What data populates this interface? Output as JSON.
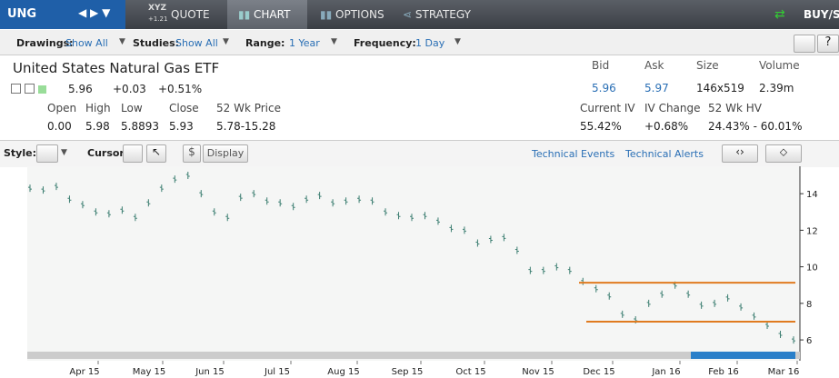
{
  "nav": {
    "symbol": "UNG",
    "quote_icon": "XYZ",
    "quote_icon_sub": "+1.21",
    "tabs": [
      "QUOTE",
      "CHART",
      "OPTIONS",
      "STRATEGY"
    ],
    "trade": "BUY/SE"
  },
  "toolbar": [
    {
      "label": "Drawings:",
      "value": "Show All"
    },
    {
      "label": "Studies:",
      "value": "Show All"
    },
    {
      "label": "Range:",
      "value": "1 Year"
    },
    {
      "label": "Frequency:",
      "value": "1 Day"
    }
  ],
  "quote": {
    "name": "United States Natural Gas ETF",
    "last": "5.96",
    "change": "+0.03",
    "change_pct": "+0.51%",
    "stats": [
      {
        "label": "Open",
        "value": "0.00"
      },
      {
        "label": "High",
        "value": "5.98"
      },
      {
        "label": "Low",
        "value": "5.8893"
      },
      {
        "label": "Close",
        "value": "5.93"
      },
      {
        "label": "52 Wk Price",
        "value": "5.78-15.28"
      }
    ],
    "market": [
      {
        "label": "Bid",
        "value": "5.96"
      },
      {
        "label": "Ask",
        "value": "5.97"
      },
      {
        "label": "Size",
        "value": "146x519"
      },
      {
        "label": "Volume",
        "value": "2.39m"
      }
    ],
    "volatility": [
      {
        "label": "Current IV",
        "value": "55.42%"
      },
      {
        "label": "IV Change",
        "value": "+0.68%"
      },
      {
        "label": "52 Wk HV",
        "value": "24.43% - 60.01%"
      }
    ]
  },
  "chart_toolbar": {
    "style": "Style:",
    "cursor": "Cursor:",
    "dollar": "$",
    "display": "Display",
    "events": "Technical Events",
    "alerts": "Technical Alerts"
  },
  "chart_data": {
    "type": "ohlc",
    "color": "#3d7f72",
    "xtick_labels": [
      "Apr 15",
      "May 15",
      "Jun 15",
      "Jul 15",
      "Aug 15",
      "Sep 15",
      "Oct 15",
      "Nov 15",
      "Dec 15",
      "Jan 16",
      "Feb 16",
      "Mar 16"
    ],
    "values": [
      14.3,
      14.2,
      14.4,
      13.7,
      13.4,
      13.0,
      12.9,
      13.1,
      12.7,
      13.5,
      14.3,
      14.8,
      15.0,
      14.0,
      13.0,
      12.7,
      13.8,
      14.0,
      13.6,
      13.5,
      13.3,
      13.7,
      13.9,
      13.5,
      13.6,
      13.7,
      13.6,
      13.0,
      12.8,
      12.7,
      12.8,
      12.5,
      12.1,
      12.0,
      11.3,
      11.5,
      11.6,
      10.9,
      9.8,
      9.8,
      10.0,
      9.8,
      9.2,
      8.8,
      8.4,
      7.4,
      7.1,
      8.0,
      8.5,
      9.0,
      8.5,
      7.9,
      8.0,
      8.3,
      7.8,
      7.3,
      6.8,
      6.3,
      6.0
    ],
    "ylim": [
      4.96,
      15.4
    ],
    "yticks": [
      6,
      8,
      10,
      12,
      14
    ],
    "grid": false,
    "levels": [
      {
        "value": 9.13,
        "color": "#e07b20"
      },
      {
        "value": 7.0,
        "color": "#e07b20"
      }
    ]
  }
}
